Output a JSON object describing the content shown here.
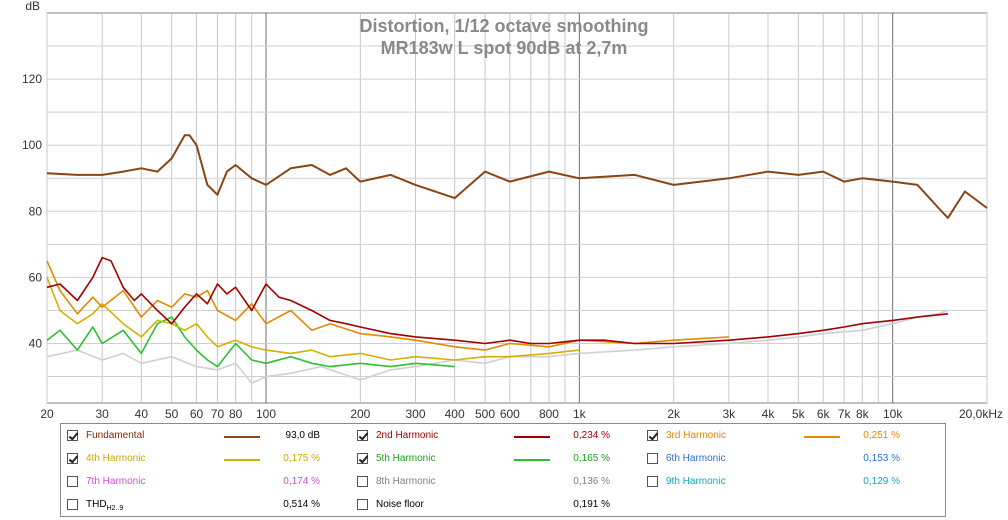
{
  "chart_data": {
    "type": "line",
    "title": "Distortion, 1/12 octave smoothing",
    "subtitle": "MR183w L spot 90dB at 2,7m",
    "ylabel": "dB",
    "xscale": "log",
    "xlim": [
      20,
      20000
    ],
    "ylim": [
      22,
      140
    ],
    "yticks": [
      40,
      60,
      80,
      100,
      120
    ],
    "xtick_labels": [
      {
        "x": 20,
        "label": "20"
      },
      {
        "x": 30,
        "label": "30"
      },
      {
        "x": 40,
        "label": "40"
      },
      {
        "x": 50,
        "label": "50"
      },
      {
        "x": 60,
        "label": "60"
      },
      {
        "x": 70,
        "label": "70"
      },
      {
        "x": 80,
        "label": "80"
      },
      {
        "x": 100,
        "label": "100"
      },
      {
        "x": 200,
        "label": "200"
      },
      {
        "x": 300,
        "label": "300"
      },
      {
        "x": 400,
        "label": "400"
      },
      {
        "x": 500,
        "label": "500"
      },
      {
        "x": 600,
        "label": "600"
      },
      {
        "x": 800,
        "label": "800"
      },
      {
        "x": 1000,
        "label": "1k"
      },
      {
        "x": 2000,
        "label": "2k"
      },
      {
        "x": 3000,
        "label": "3k"
      },
      {
        "x": 4000,
        "label": "4k"
      },
      {
        "x": 5000,
        "label": "5k"
      },
      {
        "x": 6000,
        "label": "6k"
      },
      {
        "x": 7000,
        "label": "7k"
      },
      {
        "x": 8000,
        "label": "8k"
      },
      {
        "x": 10000,
        "label": "10k"
      },
      {
        "x": 20000,
        "label": "20,0kHz"
      }
    ],
    "grid": true,
    "legend_position": "bottom",
    "series": [
      {
        "name": "Fundamental",
        "color": "#8B4513",
        "x": [
          20,
          25,
          30,
          35,
          40,
          45,
          50,
          55,
          57,
          60,
          65,
          70,
          75,
          80,
          90,
          100,
          120,
          140,
          160,
          180,
          200,
          250,
          300,
          400,
          500,
          600,
          800,
          1000,
          1500,
          2000,
          3000,
          4000,
          5000,
          6000,
          7000,
          8000,
          10000,
          12000,
          14000,
          15000,
          17000,
          20000
        ],
        "y": [
          91.5,
          91,
          91,
          92,
          93,
          92,
          96,
          103,
          103,
          100,
          88,
          85,
          92,
          94,
          90,
          88,
          93,
          94,
          91,
          93,
          89,
          91,
          88,
          84,
          92,
          89,
          92,
          90,
          91,
          88,
          90,
          92,
          91,
          92,
          89,
          90,
          89,
          88,
          81,
          78,
          86,
          81
        ]
      },
      {
        "name": "2nd Harmonic",
        "color": "#A00000",
        "x": [
          20,
          22,
          25,
          28,
          30,
          32,
          35,
          38,
          40,
          45,
          50,
          55,
          60,
          65,
          70,
          75,
          80,
          90,
          100,
          110,
          120,
          140,
          160,
          180,
          200,
          250,
          300,
          400,
          500,
          600,
          700,
          800,
          1000,
          1200,
          1500,
          2000,
          3000,
          4000,
          5000,
          6000,
          7000,
          8000,
          10000,
          12000,
          15000
        ],
        "y": [
          57,
          58,
          53,
          60,
          66,
          65,
          57,
          53,
          55,
          50,
          46,
          51,
          55,
          52,
          58,
          55,
          57,
          50,
          58,
          54,
          53,
          50,
          47,
          46,
          45,
          43,
          42,
          41,
          40,
          41,
          40,
          40,
          41,
          41,
          40,
          40,
          41,
          42,
          43,
          44,
          45,
          46,
          47,
          48,
          49
        ]
      },
      {
        "name": "3rd Harmonic",
        "color": "#E08C00",
        "x": [
          20,
          22,
          25,
          28,
          30,
          35,
          40,
          45,
          50,
          55,
          60,
          65,
          70,
          80,
          90,
          100,
          120,
          140,
          160,
          200,
          250,
          300,
          400,
          500,
          600,
          800,
          1000,
          1500,
          2000,
          3000
        ],
        "y": [
          65,
          56,
          49,
          54,
          51,
          56,
          48,
          53,
          51,
          55,
          54,
          56,
          50,
          47,
          52,
          46,
          50,
          44,
          46,
          43,
          42,
          41,
          39,
          38,
          40,
          39,
          41,
          40,
          41,
          42
        ]
      },
      {
        "name": "4th Harmonic",
        "color": "#D4B000",
        "x": [
          20,
          22,
          25,
          28,
          30,
          35,
          40,
          45,
          50,
          55,
          60,
          65,
          70,
          80,
          90,
          100,
          120,
          140,
          160,
          200,
          250,
          300,
          400,
          500,
          600,
          800,
          1000
        ],
        "y": [
          60,
          50,
          46,
          49,
          52,
          46,
          42,
          47,
          46,
          44,
          46,
          42,
          39,
          41,
          39,
          38,
          37,
          38,
          36,
          37,
          35,
          36,
          35,
          36,
          36,
          37,
          38
        ]
      },
      {
        "name": "5th Harmonic",
        "color": "#30C030",
        "x": [
          20,
          22,
          25,
          28,
          30,
          35,
          40,
          45,
          50,
          55,
          60,
          65,
          70,
          80,
          90,
          100,
          120,
          140,
          160,
          200,
          250,
          300,
          400
        ],
        "y": [
          41,
          44,
          38,
          45,
          40,
          44,
          37,
          46,
          48,
          42,
          38,
          35,
          33,
          40,
          35,
          34,
          36,
          34,
          33,
          34,
          33,
          34,
          33
        ]
      },
      {
        "name": "6th Harmonic",
        "color": "#1E90FF",
        "x": [],
        "y": []
      },
      {
        "name": "7th Harmonic",
        "color": "#E060E0",
        "x": [],
        "y": []
      },
      {
        "name": "8th Harmonic",
        "color": "#D0D0D0",
        "x": [
          20,
          25,
          30,
          35,
          40,
          50,
          60,
          70,
          80,
          90,
          100,
          120,
          150,
          200,
          250,
          300,
          400,
          500,
          600,
          800,
          1000,
          1500,
          2000,
          3000,
          4000,
          5000,
          6000,
          8000,
          10000,
          12000,
          14000,
          15000
        ],
        "y": [
          36,
          38,
          35,
          37,
          34,
          36,
          33,
          32,
          34,
          28,
          30,
          31,
          33,
          29,
          32,
          33,
          35,
          34,
          36,
          36,
          37,
          38,
          39,
          40,
          41,
          42,
          43,
          44,
          46,
          48,
          49,
          50
        ]
      },
      {
        "name": "9th Harmonic",
        "color": "#20C0D0",
        "x": [],
        "y": []
      },
      {
        "name": "THD H2..9",
        "color": "#000000",
        "x": [],
        "y": []
      },
      {
        "name": "Noise floor",
        "color": "#808080",
        "x": [],
        "y": []
      }
    ]
  },
  "legend": {
    "items": [
      {
        "label": "Fundamental",
        "label_color": "#8B2500",
        "swatch_color": "#8B4513",
        "value": "93,0 dB",
        "value_color": "#000000",
        "checked": true
      },
      {
        "label": "2nd Harmonic",
        "label_color": "#A00000",
        "swatch_color": "#A00000",
        "value": "0,234 %",
        "value_color": "#A00000",
        "checked": true
      },
      {
        "label": "3rd Harmonic",
        "label_color": "#E08C00",
        "swatch_color": "#E08C00",
        "value": "0,251 %",
        "value_color": "#E08C00",
        "checked": true
      },
      {
        "label": "4th Harmonic",
        "label_color": "#C8A800",
        "swatch_color": "#D4B000",
        "value": "0,175 %",
        "value_color": "#C8A800",
        "checked": true
      },
      {
        "label": "5th Harmonic",
        "label_color": "#20A020",
        "swatch_color": "#30C030",
        "value": "0,165 %",
        "value_color": "#20A020",
        "checked": true
      },
      {
        "label": "6th Harmonic",
        "label_color": "#3070D0",
        "swatch_color": "",
        "value": "0,153 %",
        "value_color": "#3070D0",
        "checked": false
      },
      {
        "label": "7th Harmonic",
        "label_color": "#D050D0",
        "swatch_color": "",
        "value": "0,174 %",
        "value_color": "#D050D0",
        "checked": false
      },
      {
        "label": "8th Harmonic",
        "label_color": "#808080",
        "swatch_color": "",
        "value": "0,136 %",
        "value_color": "#808080",
        "checked": false
      },
      {
        "label": "9th Harmonic",
        "label_color": "#10A8C0",
        "swatch_color": "",
        "value": "0,129 %",
        "value_color": "#10A8C0",
        "checked": false
      },
      {
        "label": "THD",
        "label_sub": "H2..9",
        "label_color": "#000000",
        "swatch_color": "",
        "value": "0,514 %",
        "value_color": "#000000",
        "checked": false
      },
      {
        "label": "Noise floor",
        "label_color": "#000000",
        "swatch_color": "",
        "value": "0,191 %",
        "value_color": "#000000",
        "checked": false
      }
    ]
  }
}
